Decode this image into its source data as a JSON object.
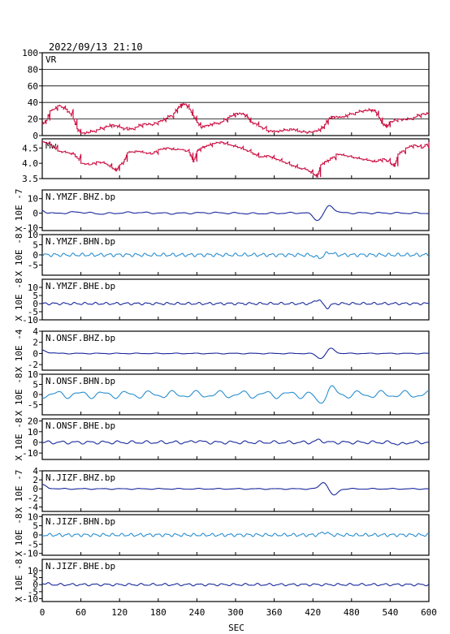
{
  "header": {
    "datetime": "2022/09/13 21:10"
  },
  "chart_data": {
    "type": "line",
    "xlabel": "SEC",
    "xlim": [
      0,
      600
    ],
    "xticks": [
      "0",
      "60",
      "120",
      "180",
      "240",
      "300",
      "360",
      "420",
      "480",
      "540",
      "600"
    ],
    "panels": [
      {
        "id": "vr",
        "name": "VR",
        "ylim": [
          0,
          100
        ],
        "step": true,
        "yticks": [
          "0",
          "20",
          "40",
          "60",
          "80",
          "100"
        ],
        "grid": [
          20,
          40,
          60,
          80
        ],
        "color": "#cc1144",
        "x": [
          0,
          6,
          12,
          24,
          36,
          48,
          54,
          60,
          72,
          84,
          96,
          108,
          120,
          132,
          144,
          156,
          168,
          180,
          192,
          204,
          210,
          216,
          222,
          228,
          234,
          240,
          246,
          252,
          264,
          276,
          288,
          300,
          312,
          318,
          324,
          336,
          348,
          360,
          372,
          384,
          396,
          408,
          420,
          432,
          438,
          444,
          450,
          462,
          474,
          486,
          498,
          510,
          516,
          522,
          528,
          534,
          540,
          552,
          564,
          576,
          588,
          600
        ],
        "values": [
          14,
          18,
          30,
          36,
          32,
          20,
          8,
          3,
          4,
          7,
          10,
          13,
          10,
          7,
          10,
          14,
          13,
          17,
          21,
          27,
          33,
          38,
          38,
          32,
          24,
          16,
          10,
          12,
          14,
          16,
          22,
          27,
          26,
          22,
          16,
          11,
          6,
          5,
          6,
          8,
          5,
          4,
          5,
          8,
          13,
          20,
          23,
          22,
          25,
          28,
          30,
          31,
          30,
          22,
          14,
          10,
          17,
          20,
          19,
          22,
          26,
          26
        ]
      },
      {
        "id": "mw",
        "name": "Mw",
        "ylim": [
          3.5,
          4.8
        ],
        "step": true,
        "yticks": [
          "3.5",
          "4.0",
          "4.5"
        ],
        "grid": [],
        "color": "#cc1144",
        "x": [
          0,
          12,
          24,
          36,
          48,
          60,
          72,
          84,
          96,
          108,
          114,
          120,
          126,
          132,
          144,
          156,
          168,
          180,
          192,
          204,
          216,
          228,
          234,
          240,
          246,
          252,
          264,
          276,
          288,
          300,
          312,
          324,
          336,
          348,
          360,
          372,
          384,
          396,
          408,
          420,
          426,
          432,
          438,
          444,
          456,
          468,
          480,
          492,
          504,
          516,
          528,
          540,
          546,
          552,
          564,
          576,
          588,
          600
        ],
        "values": [
          4.7,
          4.6,
          4.4,
          4.35,
          4.3,
          4.0,
          3.95,
          4.05,
          4.0,
          3.85,
          3.75,
          3.95,
          4.05,
          4.35,
          4.4,
          4.35,
          4.3,
          4.45,
          4.5,
          4.45,
          4.45,
          4.35,
          4.05,
          4.4,
          4.5,
          4.55,
          4.65,
          4.7,
          4.6,
          4.55,
          4.45,
          4.35,
          4.2,
          4.25,
          4.15,
          4.05,
          3.95,
          3.85,
          3.8,
          3.65,
          3.55,
          3.95,
          4.05,
          4.1,
          4.3,
          4.25,
          4.2,
          4.15,
          4.1,
          4.05,
          4.15,
          4.0,
          3.9,
          4.3,
          4.5,
          4.6,
          4.5,
          4.7
        ]
      },
      {
        "id": "ymzf-bhz",
        "name": "N.YMZF.BHZ.bp",
        "ylim": [
          -12,
          16
        ],
        "yticks": [
          "-10",
          "0",
          "10"
        ],
        "ylabel": "X 10E -7",
        "color": "#1a2a9c",
        "base": [
          [
            0,
            2
          ],
          [
            8,
            0.5
          ],
          [
            18,
            -0.3
          ],
          [
            30,
            0
          ],
          [
            55,
            0.8
          ],
          [
            90,
            -0.5
          ],
          [
            140,
            0.5
          ],
          [
            200,
            -0.2
          ],
          [
            260,
            0.3
          ],
          [
            330,
            -0.3
          ],
          [
            400,
            0.2
          ],
          [
            600,
            0
          ]
        ],
        "pulses": [
          {
            "t": 428,
            "a": -5,
            "w": 7
          },
          {
            "t": 446,
            "a": 5,
            "w": 7
          }
        ],
        "osc": {
          "amp": 0.6,
          "period": 28
        }
      },
      {
        "id": "ymzf-bhn",
        "name": "N.YMZF.BHN.bp",
        "ylim": [
          -10,
          10
        ],
        "yticks": [
          "-5",
          "0",
          "5",
          "10"
        ],
        "ylabel": "X 10E -8",
        "color": "#2a8fd0",
        "base": [
          [
            0,
            0
          ],
          [
            600,
            0
          ]
        ],
        "pulses": [
          {
            "t": 430,
            "a": -1.5,
            "w": 6
          },
          {
            "t": 445,
            "a": 1.2,
            "w": 6
          }
        ],
        "osc": {
          "amp": 0.9,
          "period": 14
        }
      },
      {
        "id": "ymzf-bhe",
        "name": "N.YMZF.BHE.bp",
        "ylim": [
          -10,
          15
        ],
        "yticks": [
          "-10",
          "-5",
          "0",
          "5",
          "10"
        ],
        "ylabel": "X 10E -8",
        "color": "#1a2a9c",
        "base": [
          [
            0,
            0
          ],
          [
            600,
            0
          ]
        ],
        "pulses": [
          {
            "t": 428,
            "a": 2.5,
            "w": 5
          },
          {
            "t": 442,
            "a": -2.5,
            "w": 5
          }
        ],
        "osc": {
          "amp": 0.8,
          "period": 16
        }
      },
      {
        "id": "onsf-bhz",
        "name": "N.ONSF.BHZ.bp",
        "ylim": [
          -3,
          4
        ],
        "yticks": [
          "-2",
          "0",
          "2",
          "4"
        ],
        "ylabel": "X 10E -4",
        "color": "#1a2a9c",
        "base": [
          [
            0,
            0.6
          ],
          [
            10,
            0.2
          ],
          [
            25,
            0
          ],
          [
            600,
            0
          ]
        ],
        "pulses": [
          {
            "t": 432,
            "a": -0.9,
            "w": 6
          },
          {
            "t": 448,
            "a": 0.9,
            "w": 6
          }
        ],
        "osc": {
          "amp": 0.08,
          "period": 30
        }
      },
      {
        "id": "onsf-bhn",
        "name": "N.ONSF.BHN.bp",
        "ylim": [
          -10,
          10
        ],
        "yticks": [
          "-5",
          "0",
          "5",
          "10"
        ],
        "ylabel": "X 10E -8",
        "color": "#2a8fd0",
        "base": [
          [
            0,
            0
          ],
          [
            600,
            0
          ]
        ],
        "pulses": [
          {
            "t": 430,
            "a": -4,
            "w": 6
          },
          {
            "t": 448,
            "a": 3,
            "w": 6
          }
        ],
        "osc": {
          "amp": 2.0,
          "period": 36
        }
      },
      {
        "id": "onsf-bhe",
        "name": "N.ONSF.BHE.bp",
        "ylim": [
          -16,
          22
        ],
        "yticks": [
          "-10",
          "0",
          "10",
          "20"
        ],
        "ylabel": "X 10E -8",
        "color": "#1a2a9c",
        "base": [
          [
            0,
            0
          ],
          [
            600,
            0
          ]
        ],
        "pulses": [
          {
            "t": 240,
            "a": 1.5,
            "w": 6
          },
          {
            "t": 430,
            "a": 2.0,
            "w": 6
          },
          {
            "t": 555,
            "a": -2.0,
            "w": 6
          }
        ],
        "osc": {
          "amp": 1.6,
          "period": 22
        }
      },
      {
        "id": "jizf-bhz",
        "name": "N.JIZF.BHZ.bp",
        "ylim": [
          -5,
          4
        ],
        "yticks": [
          "-4",
          "-2",
          "0",
          "2",
          "4"
        ],
        "ylabel": "X 10E -7",
        "color": "#1a2a9c",
        "base": [
          [
            0,
            1
          ],
          [
            10,
            0.2
          ],
          [
            25,
            0
          ],
          [
            600,
            0
          ]
        ],
        "pulses": [
          {
            "t": 437,
            "a": 1.5,
            "w": 6
          },
          {
            "t": 452,
            "a": -1.5,
            "w": 6
          }
        ],
        "osc": {
          "amp": 0.12,
          "period": 30
        }
      },
      {
        "id": "jizf-bhn",
        "name": "N.JIZF.BHN.bp",
        "ylim": [
          -11,
          11
        ],
        "yticks": [
          "-10",
          "-5",
          "0",
          "5",
          "10"
        ],
        "ylabel": "X 10E -8",
        "color": "#2a8fd0",
        "base": [
          [
            0,
            0
          ],
          [
            600,
            0
          ]
        ],
        "pulses": [
          {
            "t": 438,
            "a": 1.5,
            "w": 5
          }
        ],
        "osc": {
          "amp": 0.9,
          "period": 14
        }
      },
      {
        "id": "jizf-bhe",
        "name": "N.JIZF.BHE.bp",
        "ylim": [
          -12,
          18
        ],
        "yticks": [
          "-10",
          "-5",
          "0",
          "5",
          "10"
        ],
        "ylabel": "X 10E -8",
        "color": "#1a2a9c",
        "base": [
          [
            0,
            1
          ],
          [
            20,
            0
          ],
          [
            600,
            0
          ]
        ],
        "pulses": [],
        "osc": {
          "amp": 0.9,
          "period": 18
        }
      }
    ]
  }
}
